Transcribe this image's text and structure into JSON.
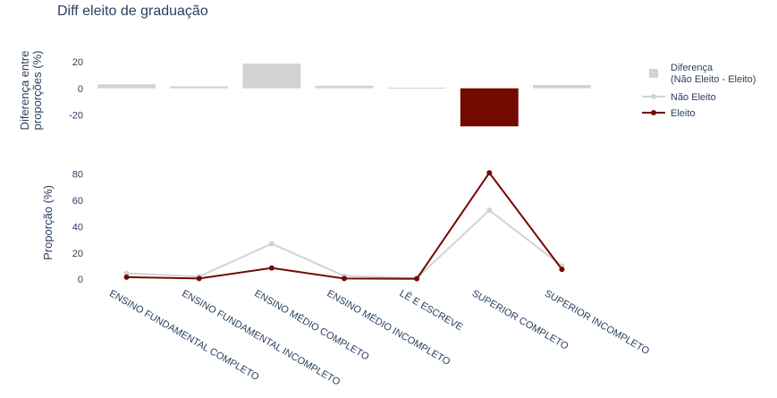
{
  "title": "Diff eleito de graduação",
  "chart_data": [
    {
      "type": "bar",
      "ylabel_lines": [
        "Diferença entre",
        "proporções (%)"
      ],
      "ylim": [
        -33,
        30
      ],
      "yticks": [
        20,
        0,
        -20
      ],
      "categories": [
        "ENSINO FUNDAMENTAL COMPLETO",
        "ENSINO FUNDAMENTAL INCOMPLETO",
        "ENSINO MÉDIO COMPLETO",
        "ENSINO MÉDIO INCOMPLETO",
        "LÊ E ESCREVE",
        "SUPERIOR COMPLETO",
        "SUPERIOR INCOMPLETO"
      ],
      "series": [
        {
          "name": "Diferença\n(Não Eleito - Eleito)",
          "values": [
            3,
            1.5,
            18.5,
            2,
            0.5,
            -28.5,
            2.5
          ]
        }
      ],
      "colors": {
        "positive": "#d3d3d3",
        "negative": "#730a00"
      }
    },
    {
      "type": "line",
      "ylabel": "Proporção (%)",
      "ylim": [
        -4,
        90
      ],
      "yticks": [
        80,
        60,
        40,
        20,
        0
      ],
      "categories": [
        "ENSINO FUNDAMENTAL COMPLETO",
        "ENSINO FUNDAMENTAL INCOMPLETO",
        "ENSINO MÉDIO COMPLETO",
        "ENSINO MÉDIO INCOMPLETO",
        "LÊ E ESCREVE",
        "SUPERIOR COMPLETO",
        "SUPERIOR INCOMPLETO"
      ],
      "series": [
        {
          "name": "Não Eleito",
          "color": "#d3d3d3",
          "values": [
            4.5,
            2,
            27,
            2.5,
            0.8,
            52.5,
            10
          ]
        },
        {
          "name": "Eleito",
          "color": "#730a00",
          "values": [
            1.5,
            0.5,
            8.5,
            0.5,
            0.3,
            81,
            7.5
          ]
        }
      ]
    }
  ],
  "legend": {
    "items": [
      {
        "label_lines": [
          "Diferença",
          "(Não Eleito - Eleito)"
        ],
        "kind": "square",
        "color": "#d3d3d3"
      },
      {
        "label_lines": [
          "Não Eleito"
        ],
        "kind": "line",
        "color": "#d3d3d3"
      },
      {
        "label_lines": [
          "Eleito"
        ],
        "kind": "line",
        "color": "#730a00"
      }
    ]
  }
}
